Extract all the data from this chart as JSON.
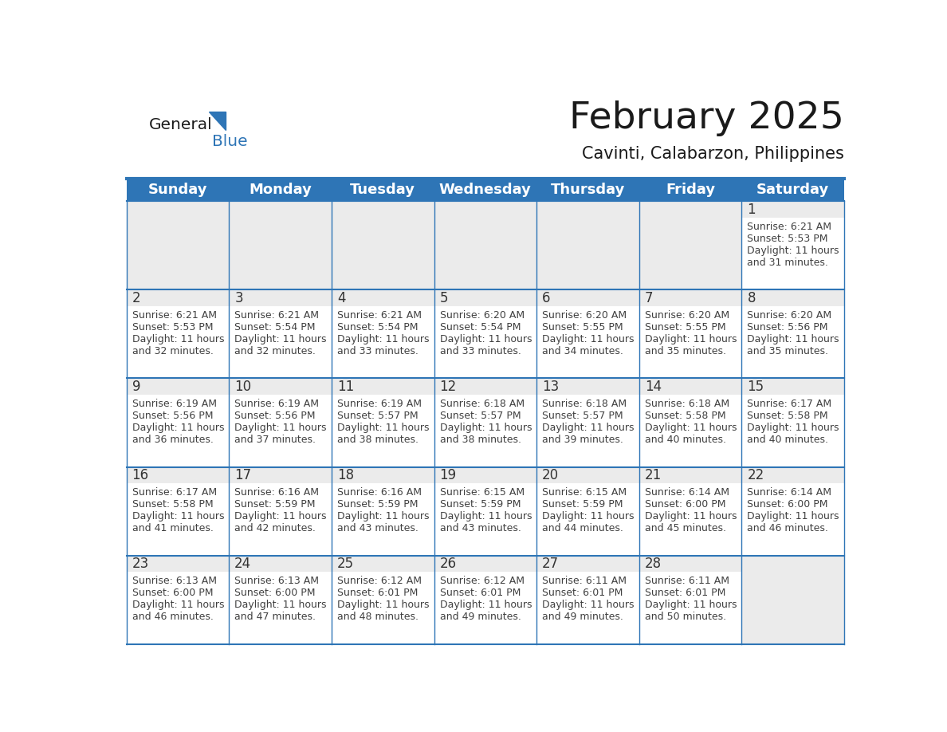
{
  "title": "February 2025",
  "subtitle": "Cavinti, Calabarzon, Philippines",
  "header_bg_color": "#2E75B6",
  "header_text_color": "#FFFFFF",
  "cell_bg_color": "#FFFFFF",
  "day_num_bg_color": "#EBEBEB",
  "border_color": "#2E75B6",
  "day_number_color": "#333333",
  "cell_text_color": "#404040",
  "days_of_week": [
    "Sunday",
    "Monday",
    "Tuesday",
    "Wednesday",
    "Thursday",
    "Friday",
    "Saturday"
  ],
  "title_color": "#1A1A1A",
  "subtitle_color": "#1A1A1A",
  "logo_general_color": "#1A1A1A",
  "logo_blue_color": "#2E75B6",
  "weeks": [
    [
      {
        "day": null,
        "sunrise": null,
        "sunset": null,
        "daylight": null
      },
      {
        "day": null,
        "sunrise": null,
        "sunset": null,
        "daylight": null
      },
      {
        "day": null,
        "sunrise": null,
        "sunset": null,
        "daylight": null
      },
      {
        "day": null,
        "sunrise": null,
        "sunset": null,
        "daylight": null
      },
      {
        "day": null,
        "sunrise": null,
        "sunset": null,
        "daylight": null
      },
      {
        "day": null,
        "sunrise": null,
        "sunset": null,
        "daylight": null
      },
      {
        "day": 1,
        "sunrise": "6:21 AM",
        "sunset": "5:53 PM",
        "daylight": "11 hours and 31 minutes."
      }
    ],
    [
      {
        "day": 2,
        "sunrise": "6:21 AM",
        "sunset": "5:53 PM",
        "daylight": "11 hours and 32 minutes."
      },
      {
        "day": 3,
        "sunrise": "6:21 AM",
        "sunset": "5:54 PM",
        "daylight": "11 hours and 32 minutes."
      },
      {
        "day": 4,
        "sunrise": "6:21 AM",
        "sunset": "5:54 PM",
        "daylight": "11 hours and 33 minutes."
      },
      {
        "day": 5,
        "sunrise": "6:20 AM",
        "sunset": "5:54 PM",
        "daylight": "11 hours and 33 minutes."
      },
      {
        "day": 6,
        "sunrise": "6:20 AM",
        "sunset": "5:55 PM",
        "daylight": "11 hours and 34 minutes."
      },
      {
        "day": 7,
        "sunrise": "6:20 AM",
        "sunset": "5:55 PM",
        "daylight": "11 hours and 35 minutes."
      },
      {
        "day": 8,
        "sunrise": "6:20 AM",
        "sunset": "5:56 PM",
        "daylight": "11 hours and 35 minutes."
      }
    ],
    [
      {
        "day": 9,
        "sunrise": "6:19 AM",
        "sunset": "5:56 PM",
        "daylight": "11 hours and 36 minutes."
      },
      {
        "day": 10,
        "sunrise": "6:19 AM",
        "sunset": "5:56 PM",
        "daylight": "11 hours and 37 minutes."
      },
      {
        "day": 11,
        "sunrise": "6:19 AM",
        "sunset": "5:57 PM",
        "daylight": "11 hours and 38 minutes."
      },
      {
        "day": 12,
        "sunrise": "6:18 AM",
        "sunset": "5:57 PM",
        "daylight": "11 hours and 38 minutes."
      },
      {
        "day": 13,
        "sunrise": "6:18 AM",
        "sunset": "5:57 PM",
        "daylight": "11 hours and 39 minutes."
      },
      {
        "day": 14,
        "sunrise": "6:18 AM",
        "sunset": "5:58 PM",
        "daylight": "11 hours and 40 minutes."
      },
      {
        "day": 15,
        "sunrise": "6:17 AM",
        "sunset": "5:58 PM",
        "daylight": "11 hours and 40 minutes."
      }
    ],
    [
      {
        "day": 16,
        "sunrise": "6:17 AM",
        "sunset": "5:58 PM",
        "daylight": "11 hours and 41 minutes."
      },
      {
        "day": 17,
        "sunrise": "6:16 AM",
        "sunset": "5:59 PM",
        "daylight": "11 hours and 42 minutes."
      },
      {
        "day": 18,
        "sunrise": "6:16 AM",
        "sunset": "5:59 PM",
        "daylight": "11 hours and 43 minutes."
      },
      {
        "day": 19,
        "sunrise": "6:15 AM",
        "sunset": "5:59 PM",
        "daylight": "11 hours and 43 minutes."
      },
      {
        "day": 20,
        "sunrise": "6:15 AM",
        "sunset": "5:59 PM",
        "daylight": "11 hours and 44 minutes."
      },
      {
        "day": 21,
        "sunrise": "6:14 AM",
        "sunset": "6:00 PM",
        "daylight": "11 hours and 45 minutes."
      },
      {
        "day": 22,
        "sunrise": "6:14 AM",
        "sunset": "6:00 PM",
        "daylight": "11 hours and 46 minutes."
      }
    ],
    [
      {
        "day": 23,
        "sunrise": "6:13 AM",
        "sunset": "6:00 PM",
        "daylight": "11 hours and 46 minutes."
      },
      {
        "day": 24,
        "sunrise": "6:13 AM",
        "sunset": "6:00 PM",
        "daylight": "11 hours and 47 minutes."
      },
      {
        "day": 25,
        "sunrise": "6:12 AM",
        "sunset": "6:01 PM",
        "daylight": "11 hours and 48 minutes."
      },
      {
        "day": 26,
        "sunrise": "6:12 AM",
        "sunset": "6:01 PM",
        "daylight": "11 hours and 49 minutes."
      },
      {
        "day": 27,
        "sunrise": "6:11 AM",
        "sunset": "6:01 PM",
        "daylight": "11 hours and 49 minutes."
      },
      {
        "day": 28,
        "sunrise": "6:11 AM",
        "sunset": "6:01 PM",
        "daylight": "11 hours and 50 minutes."
      },
      {
        "day": null,
        "sunrise": null,
        "sunset": null,
        "daylight": null
      }
    ]
  ]
}
